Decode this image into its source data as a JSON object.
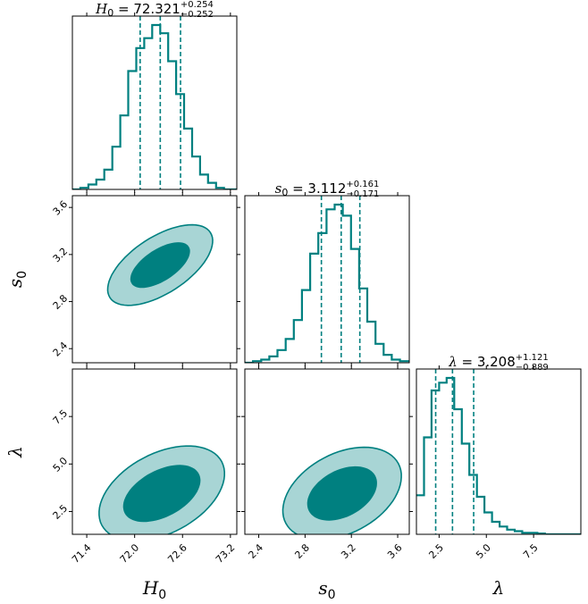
{
  "colors": {
    "main": "#008080",
    "fill_outer": "#a8d5d5",
    "fill_inner": "#008080",
    "frame": "#000000"
  },
  "chart_data": {
    "type": "corner",
    "parameters": [
      {
        "key": "H0",
        "label": "H",
        "label_sub": "0",
        "title_symbol": "H",
        "title_sub": "0",
        "median": "72.321",
        "err_plus": "+0.254",
        "err_minus": "−0.252",
        "median_value": 72.321,
        "plus_value": 0.254,
        "minus_value": 0.252,
        "range": [
          71.22,
          73.28
        ],
        "ticks": [
          71.4,
          72.0,
          72.6,
          73.2
        ],
        "tick_labels": [
          "71.4",
          "72.0",
          "72.6",
          "73.2"
        ],
        "hist_edges_start": 71.22,
        "hist_bin_width": 0.1,
        "hist_heights": [
          0,
          0.01,
          0.03,
          0.06,
          0.12,
          0.26,
          0.45,
          0.72,
          0.86,
          0.92,
          1.0,
          0.95,
          0.78,
          0.58,
          0.37,
          0.2,
          0.09,
          0.04,
          0.01,
          0,
          0
        ]
      },
      {
        "key": "s0",
        "label": "s",
        "label_sub": "0",
        "title_symbol": "s",
        "title_sub": "0",
        "median": "3.112",
        "err_plus": "+0.161",
        "err_minus": "−0.171",
        "median_value": 3.112,
        "plus_value": 0.161,
        "minus_value": 0.171,
        "range": [
          2.28,
          3.7
        ],
        "ticks": [
          2.4,
          2.8,
          3.2,
          3.6
        ],
        "tick_labels": [
          "2.4",
          "2.8",
          "3.2",
          "3.6"
        ],
        "hist_edges_start": 2.28,
        "hist_bin_width": 0.0705,
        "hist_heights": [
          0,
          0.01,
          0.02,
          0.04,
          0.08,
          0.15,
          0.27,
          0.46,
          0.69,
          0.82,
          0.97,
          1.0,
          0.93,
          0.72,
          0.47,
          0.26,
          0.12,
          0.05,
          0.02,
          0.01,
          0.01
        ]
      },
      {
        "key": "lambda",
        "label": "λ",
        "label_sub": "",
        "title_symbol": "λ",
        "title_sub": "",
        "median": "3.208",
        "err_plus": "+1.121",
        "err_minus": "−0.889",
        "median_value": 3.208,
        "plus_value": 1.121,
        "minus_value": 0.889,
        "range": [
          1.3,
          10.0
        ],
        "ticks": [
          2.5,
          5.0,
          7.5
        ],
        "tick_labels": [
          "2.5",
          "5.0",
          "7.5"
        ],
        "hist_edges_start": 1.3,
        "hist_bin_width": 0.4,
        "hist_heights": [
          0.25,
          0.62,
          0.92,
          0.97,
          1.0,
          0.8,
          0.58,
          0.38,
          0.24,
          0.14,
          0.08,
          0.05,
          0.03,
          0.02,
          0.01,
          0.01,
          0.005,
          0,
          0,
          0,
          0,
          0
        ]
      }
    ],
    "contours": [
      {
        "x": "H0",
        "y": "s0",
        "center": [
          72.32,
          3.11
        ],
        "inner": {
          "rx": 0.42,
          "ry": 0.13,
          "angle_deg": 33
        },
        "outer": {
          "rx": 0.75,
          "ry": 0.24,
          "angle_deg": 33
        }
      },
      {
        "x": "H0",
        "y": "lambda",
        "center": [
          72.34,
          3.45
        ],
        "inner": {
          "rx": 0.52,
          "ry": 1.2,
          "angle_deg": 28
        },
        "outer": {
          "rx": 0.85,
          "ry": 2.1,
          "angle_deg": 28
        }
      },
      {
        "x": "s0",
        "y": "lambda",
        "center": [
          3.12,
          3.45
        ],
        "inner": {
          "rx": 0.32,
          "ry": 1.2,
          "angle_deg": 28
        },
        "outer": {
          "rx": 0.55,
          "ry": 2.1,
          "angle_deg": 28
        }
      }
    ],
    "grid": false,
    "legend": "none"
  }
}
